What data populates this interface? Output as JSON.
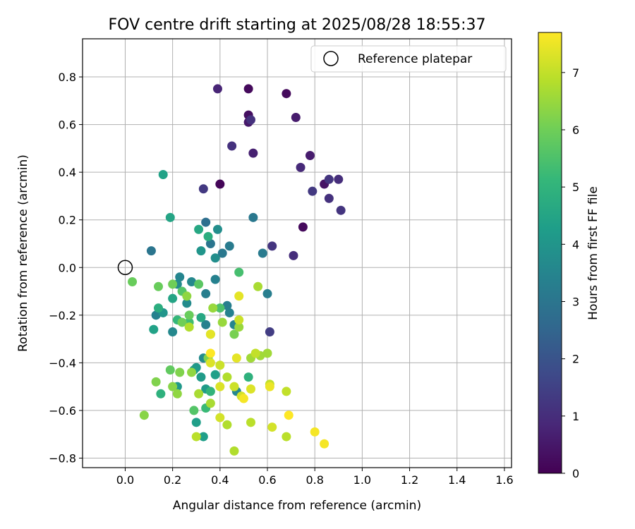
{
  "chart_data": {
    "type": "scatter",
    "title": "FOV centre drift starting at 2025/08/28 18:55:37",
    "xlabel": "Angular distance from reference (arcmin)",
    "ylabel": "Rotation from reference (arcmin)",
    "xlim": [
      -0.18,
      1.63
    ],
    "ylim": [
      -0.84,
      0.96
    ],
    "xticks": [
      "0.0",
      "0.2",
      "0.4",
      "0.6",
      "0.8",
      "1.0",
      "1.2",
      "1.4",
      "1.6"
    ],
    "yticks": [
      "−0.8",
      "−0.6",
      "−0.4",
      "−0.2",
      "0.0",
      "0.2",
      "0.4",
      "0.6",
      "0.8"
    ],
    "grid": true,
    "legend": {
      "placement": "top-right",
      "label": "Reference platepar"
    },
    "reference_point": {
      "x": 0.0,
      "y": 0.0
    },
    "colorbar": {
      "label": "Hours from first FF file",
      "range": [
        0,
        7.7
      ],
      "ticks": [
        "0",
        "1",
        "2",
        "3",
        "4",
        "5",
        "6",
        "7"
      ],
      "colormap": "viridis"
    },
    "points": [
      {
        "x": 0.4,
        "y": 0.35,
        "h": 0.1
      },
      {
        "x": 0.52,
        "y": 0.75,
        "h": 0.2
      },
      {
        "x": 0.68,
        "y": 0.73,
        "h": 0.2
      },
      {
        "x": 0.52,
        "y": 0.64,
        "h": 0.3
      },
      {
        "x": 0.75,
        "y": 0.17,
        "h": 0.2
      },
      {
        "x": 0.84,
        "y": 0.35,
        "h": 0.4
      },
      {
        "x": 0.52,
        "y": 0.61,
        "h": 0.5
      },
      {
        "x": 0.72,
        "y": 0.63,
        "h": 0.6
      },
      {
        "x": 0.78,
        "y": 0.47,
        "h": 0.6
      },
      {
        "x": 0.54,
        "y": 0.48,
        "h": 0.7
      },
      {
        "x": 0.39,
        "y": 0.75,
        "h": 0.8
      },
      {
        "x": 0.74,
        "y": 0.42,
        "h": 0.9
      },
      {
        "x": 0.9,
        "y": 0.37,
        "h": 1.0
      },
      {
        "x": 0.45,
        "y": 0.51,
        "h": 1.1
      },
      {
        "x": 0.53,
        "y": 0.62,
        "h": 1.1
      },
      {
        "x": 0.71,
        "y": 0.05,
        "h": 1.0
      },
      {
        "x": 0.86,
        "y": 0.37,
        "h": 1.2
      },
      {
        "x": 0.91,
        "y": 0.24,
        "h": 1.2
      },
      {
        "x": 0.62,
        "y": 0.09,
        "h": 1.2
      },
      {
        "x": 0.33,
        "y": 0.33,
        "h": 1.3
      },
      {
        "x": 0.79,
        "y": 0.32,
        "h": 1.3
      },
      {
        "x": 0.86,
        "y": 0.29,
        "h": 1.1
      },
      {
        "x": 0.61,
        "y": -0.27,
        "h": 1.4
      },
      {
        "x": 0.34,
        "y": 0.19,
        "h": 2.8
      },
      {
        "x": 0.11,
        "y": 0.07,
        "h": 3.0
      },
      {
        "x": 0.36,
        "y": 0.1,
        "h": 3.0
      },
      {
        "x": 0.54,
        "y": 0.21,
        "h": 3.1
      },
      {
        "x": 0.41,
        "y": 0.06,
        "h": 3.1
      },
      {
        "x": 0.44,
        "y": 0.09,
        "h": 3.2
      },
      {
        "x": 0.58,
        "y": 0.06,
        "h": 3.2
      },
      {
        "x": 0.6,
        "y": -0.11,
        "h": 3.3
      },
      {
        "x": 0.34,
        "y": -0.11,
        "h": 3.3
      },
      {
        "x": 0.43,
        "y": -0.16,
        "h": 3.3
      },
      {
        "x": 0.38,
        "y": -0.05,
        "h": 3.4
      },
      {
        "x": 0.44,
        "y": -0.19,
        "h": 3.4
      },
      {
        "x": 0.13,
        "y": -0.2,
        "h": 3.4
      },
      {
        "x": 0.34,
        "y": -0.24,
        "h": 3.4
      },
      {
        "x": 0.23,
        "y": -0.04,
        "h": 3.5
      },
      {
        "x": 0.46,
        "y": -0.24,
        "h": 3.5
      },
      {
        "x": 0.2,
        "y": -0.27,
        "h": 3.6
      },
      {
        "x": 0.28,
        "y": -0.06,
        "h": 3.6
      },
      {
        "x": 0.26,
        "y": -0.15,
        "h": 3.7
      },
      {
        "x": 0.22,
        "y": -0.07,
        "h": 3.7
      },
      {
        "x": 0.33,
        "y": -0.38,
        "h": 3.7
      },
      {
        "x": 0.47,
        "y": -0.52,
        "h": 3.6
      },
      {
        "x": 0.39,
        "y": 0.16,
        "h": 3.8
      },
      {
        "x": 0.38,
        "y": 0.04,
        "h": 3.8
      },
      {
        "x": 0.32,
        "y": 0.07,
        "h": 4.0
      },
      {
        "x": 0.16,
        "y": -0.19,
        "h": 4.0
      },
      {
        "x": 0.22,
        "y": -0.5,
        "h": 4.1
      },
      {
        "x": 0.3,
        "y": -0.42,
        "h": 4.1
      },
      {
        "x": 0.32,
        "y": -0.46,
        "h": 4.2
      },
      {
        "x": 0.34,
        "y": -0.51,
        "h": 4.2
      },
      {
        "x": 0.3,
        "y": -0.65,
        "h": 4.3
      },
      {
        "x": 0.33,
        "y": -0.71,
        "h": 4.3
      },
      {
        "x": 0.38,
        "y": -0.45,
        "h": 4.3
      },
      {
        "x": 0.16,
        "y": 0.39,
        "h": 4.4
      },
      {
        "x": 0.29,
        "y": -0.43,
        "h": 4.2
      },
      {
        "x": 0.12,
        "y": -0.26,
        "h": 4.4
      },
      {
        "x": 0.19,
        "y": 0.21,
        "h": 4.5
      },
      {
        "x": 0.2,
        "y": -0.13,
        "h": 4.5
      },
      {
        "x": 0.32,
        "y": -0.21,
        "h": 4.6
      },
      {
        "x": 0.31,
        "y": 0.16,
        "h": 4.6
      },
      {
        "x": 0.35,
        "y": 0.13,
        "h": 4.8
      },
      {
        "x": 0.14,
        "y": -0.17,
        "h": 4.8
      },
      {
        "x": 0.52,
        "y": -0.46,
        "h": 4.9
      },
      {
        "x": 0.15,
        "y": -0.53,
        "h": 4.9
      },
      {
        "x": 0.36,
        "y": -0.52,
        "h": 5.0
      },
      {
        "x": 0.22,
        "y": -0.22,
        "h": 5.1
      },
      {
        "x": 0.34,
        "y": -0.59,
        "h": 5.2
      },
      {
        "x": 0.27,
        "y": -0.23,
        "h": 5.3
      },
      {
        "x": 0.48,
        "y": -0.02,
        "h": 5.4
      },
      {
        "x": 0.4,
        "y": -0.17,
        "h": 5.5
      },
      {
        "x": 0.24,
        "y": -0.1,
        "h": 5.6
      },
      {
        "x": 0.29,
        "y": -0.6,
        "h": 5.6
      },
      {
        "x": 0.31,
        "y": -0.07,
        "h": 5.7
      },
      {
        "x": 0.19,
        "y": -0.43,
        "h": 5.8
      },
      {
        "x": 0.03,
        "y": -0.06,
        "h": 5.9
      },
      {
        "x": 0.14,
        "y": -0.08,
        "h": 5.9
      },
      {
        "x": 0.27,
        "y": -0.2,
        "h": 5.9
      },
      {
        "x": 0.2,
        "y": -0.07,
        "h": 6.0
      },
      {
        "x": 0.24,
        "y": -0.23,
        "h": 6.0
      },
      {
        "x": 0.36,
        "y": -0.28,
        "h": 6.1
      },
      {
        "x": 0.46,
        "y": -0.28,
        "h": 6.1
      },
      {
        "x": 0.23,
        "y": -0.44,
        "h": 6.2
      },
      {
        "x": 0.35,
        "y": -0.38,
        "h": 6.2
      },
      {
        "x": 0.13,
        "y": -0.48,
        "h": 6.2
      },
      {
        "x": 0.08,
        "y": -0.62,
        "h": 6.3
      },
      {
        "x": 0.2,
        "y": -0.5,
        "h": 6.3
      },
      {
        "x": 0.22,
        "y": -0.53,
        "h": 6.4
      },
      {
        "x": 0.26,
        "y": -0.12,
        "h": 6.4
      },
      {
        "x": 0.28,
        "y": -0.44,
        "h": 6.4
      },
      {
        "x": 0.37,
        "y": -0.17,
        "h": 6.5
      },
      {
        "x": 0.41,
        "y": -0.23,
        "h": 6.5
      },
      {
        "x": 0.48,
        "y": -0.25,
        "h": 6.5
      },
      {
        "x": 0.53,
        "y": -0.38,
        "h": 6.6
      },
      {
        "x": 0.57,
        "y": -0.37,
        "h": 6.6
      },
      {
        "x": 0.6,
        "y": -0.36,
        "h": 6.6
      },
      {
        "x": 0.56,
        "y": -0.08,
        "h": 6.7
      },
      {
        "x": 0.36,
        "y": -0.57,
        "h": 6.7
      },
      {
        "x": 0.31,
        "y": -0.53,
        "h": 6.7
      },
      {
        "x": 0.27,
        "y": -0.25,
        "h": 6.8
      },
      {
        "x": 0.43,
        "y": -0.46,
        "h": 6.8
      },
      {
        "x": 0.43,
        "y": -0.66,
        "h": 6.8
      },
      {
        "x": 0.46,
        "y": -0.77,
        "h": 6.8
      },
      {
        "x": 0.53,
        "y": -0.65,
        "h": 6.9
      },
      {
        "x": 0.3,
        "y": -0.71,
        "h": 6.9
      },
      {
        "x": 0.68,
        "y": -0.71,
        "h": 6.9
      },
      {
        "x": 0.68,
        "y": -0.52,
        "h": 7.0
      },
      {
        "x": 0.61,
        "y": -0.49,
        "h": 7.0
      },
      {
        "x": 0.55,
        "y": -0.36,
        "h": 7.0
      },
      {
        "x": 0.48,
        "y": -0.22,
        "h": 7.1
      },
      {
        "x": 0.46,
        "y": -0.5,
        "h": 7.1
      },
      {
        "x": 0.4,
        "y": -0.41,
        "h": 7.1
      },
      {
        "x": 0.4,
        "y": -0.63,
        "h": 7.2
      },
      {
        "x": 0.49,
        "y": -0.54,
        "h": 7.2
      },
      {
        "x": 0.62,
        "y": -0.67,
        "h": 7.2
      },
      {
        "x": 0.36,
        "y": -0.4,
        "h": 7.3
      },
      {
        "x": 0.4,
        "y": -0.5,
        "h": 7.3
      },
      {
        "x": 0.53,
        "y": -0.51,
        "h": 7.3
      },
      {
        "x": 0.47,
        "y": -0.38,
        "h": 7.4
      },
      {
        "x": 0.36,
        "y": -0.28,
        "h": 7.4
      },
      {
        "x": 0.48,
        "y": -0.12,
        "h": 7.4
      },
      {
        "x": 0.61,
        "y": -0.5,
        "h": 7.5
      },
      {
        "x": 0.5,
        "y": -0.55,
        "h": 7.6
      },
      {
        "x": 0.8,
        "y": -0.69,
        "h": 7.6
      },
      {
        "x": 0.84,
        "y": -0.74,
        "h": 7.6
      },
      {
        "x": 0.69,
        "y": -0.62,
        "h": 7.7
      },
      {
        "x": 0.36,
        "y": -0.36,
        "h": 7.7
      }
    ]
  }
}
